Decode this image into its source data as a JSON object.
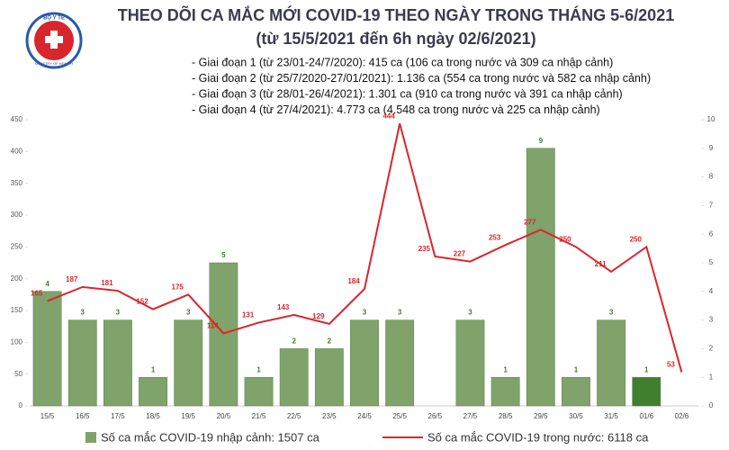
{
  "logo": {
    "top": "BỘ Y TẾ",
    "bottom": "MINISTRY OF HEALTH"
  },
  "chart_data": {
    "type": "bar-line",
    "title": "THEO DÕI CA MẮC MỚI COVID-19 THEO NGÀY TRONG THÁNG 5-6/2021",
    "subtitle": "(từ 15/5/2021 đến 6h ngày 02/6/2021)",
    "notes": [
      "- Giai đoạn 1 (từ 23/01-24/7/2020): 415 ca (106 ca trong nước và 309 ca nhập cảnh)",
      "- Giai đoạn 2 (từ 25/7/2020-27/01/2021): 1.136 ca (554 ca trong nước và 582 ca nhập cảnh)",
      "- Giai đoạn 3 (từ 28/01-26/4/2021): 1.301 ca (910 ca trong nước và 391 ca nhập cảnh)",
      "- Giai đoạn 4 (từ 27/4/2021): 4.773 ca (4.548 ca trong nước và 225 ca nhập cảnh)"
    ],
    "categories": [
      "15/5",
      "16/5",
      "17/5",
      "18/5",
      "19/5",
      "20/5",
      "21/5",
      "22/5",
      "23/5",
      "24/5",
      "25/5",
      "26/5",
      "27/5",
      "28/5",
      "29/5",
      "30/5",
      "31/5",
      "01/6",
      "02/6"
    ],
    "series": [
      {
        "name": "Số ca mắc COVID-19 nhập cảnh: 1507 ca",
        "type": "bar",
        "axis": "y2",
        "color": "#7fa36a",
        "colors": [
          "#7fa36a",
          "#7fa36a",
          "#7fa36a",
          "#7fa36a",
          "#7fa36a",
          "#7fa36a",
          "#7fa36a",
          "#7fa36a",
          "#7fa36a",
          "#7fa36a",
          "#7fa36a",
          "#7fa36a",
          "#7fa36a",
          "#7fa36a",
          "#7fa36a",
          "#7fa36a",
          "#7fa36a",
          "#3f7f2e",
          "#7fa36a"
        ],
        "values": [
          4,
          3,
          3,
          1,
          3,
          5,
          1,
          2,
          2,
          3,
          3,
          null,
          3,
          1,
          9,
          1,
          3,
          1,
          null
        ]
      },
      {
        "name": "Số ca mắc COVID-19 trong nước: 6118 ca",
        "type": "line",
        "color": "#d9262c",
        "values": [
          165,
          187,
          181,
          152,
          175,
          114,
          131,
          143,
          129,
          184,
          444,
          235,
          227,
          253,
          277,
          250,
          211,
          250,
          53
        ]
      }
    ],
    "ylim": [
      0,
      450
    ],
    "yticks": [
      0,
      50,
      100,
      150,
      200,
      250,
      300,
      350,
      400,
      450
    ],
    "y2lim": [
      0,
      10
    ],
    "y2ticks": [
      0,
      1,
      2,
      3,
      4,
      5,
      6,
      7,
      8,
      9,
      10
    ]
  }
}
